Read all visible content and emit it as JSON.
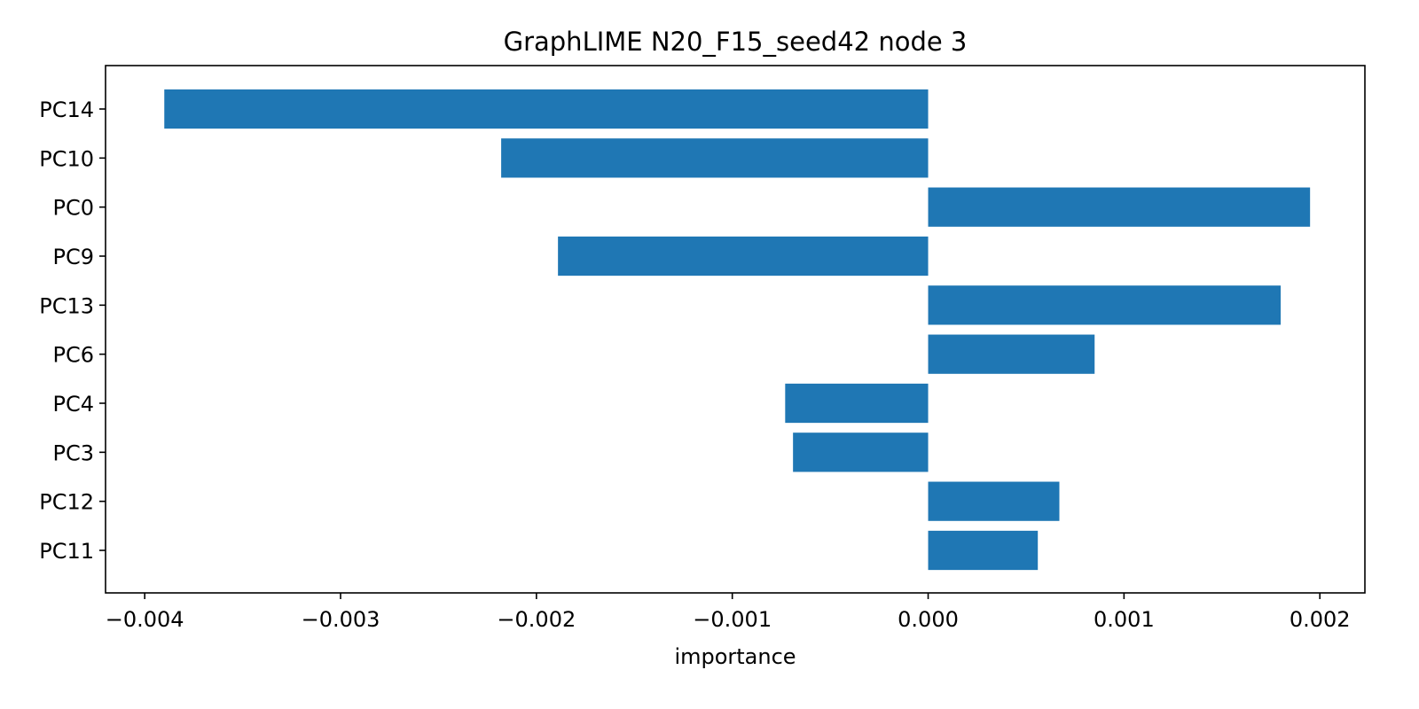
{
  "chart_data": {
    "type": "bar",
    "orientation": "horizontal",
    "title": "GraphLIME N20_F15_seed42 node 3",
    "xlabel": "importance",
    "ylabel": "",
    "categories": [
      "PC14",
      "PC10",
      "PC0",
      "PC9",
      "PC13",
      "PC6",
      "PC4",
      "PC3",
      "PC12",
      "PC11"
    ],
    "values": [
      -0.0039,
      -0.00218,
      0.00195,
      -0.00189,
      0.0018,
      0.00085,
      -0.00073,
      -0.00069,
      0.00067,
      0.00056
    ],
    "xlim": [
      -0.0042,
      0.00223
    ],
    "xticks": [
      -0.004,
      -0.003,
      -0.002,
      -0.001,
      0.0,
      0.001,
      0.002
    ],
    "xtick_labels": [
      "−0.004",
      "−0.003",
      "−0.002",
      "−0.001",
      "0.000",
      "0.001",
      "0.002"
    ],
    "bar_color": "#1f77b4",
    "grid": false,
    "legend": "none"
  }
}
